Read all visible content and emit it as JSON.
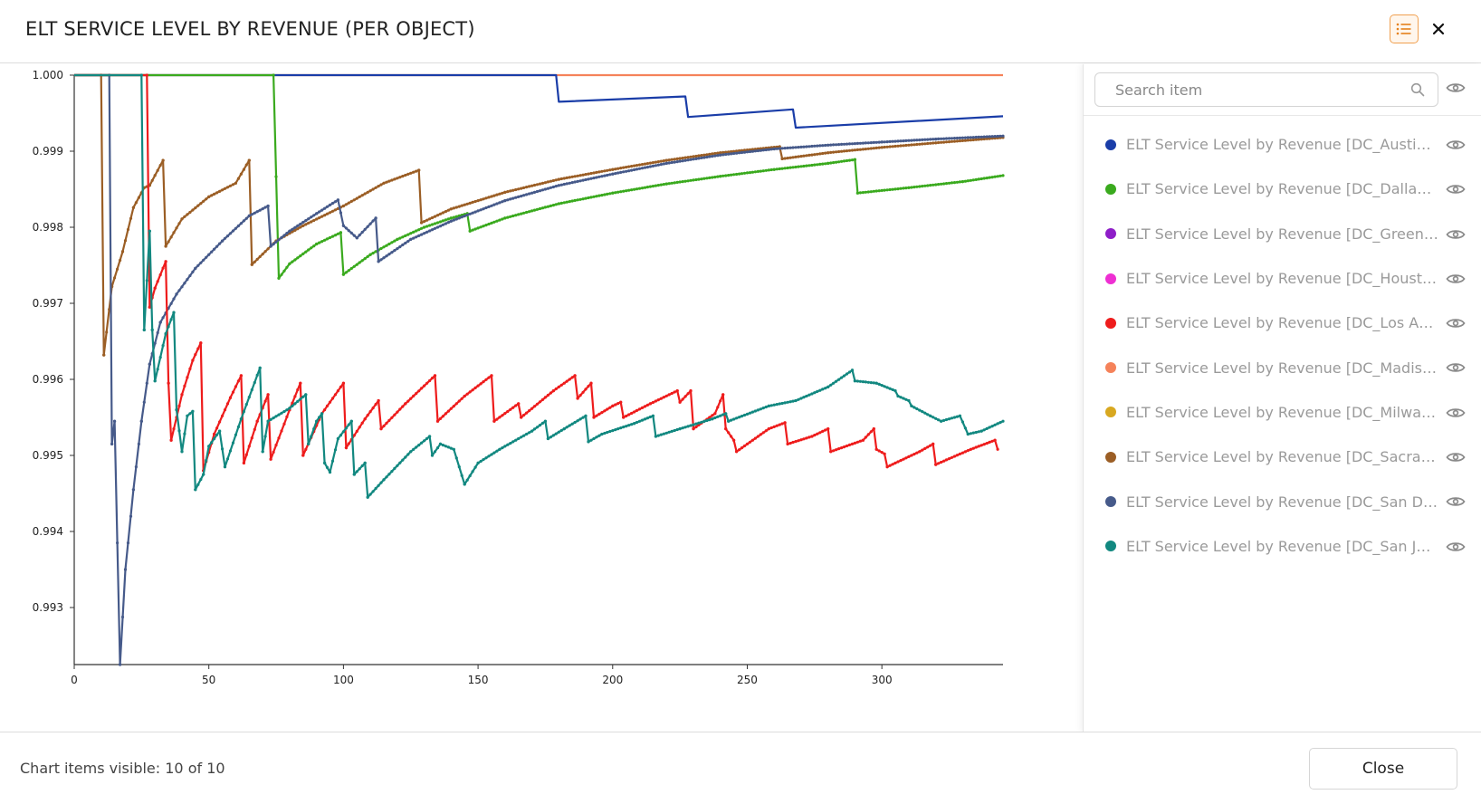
{
  "header": {
    "title": "ELT SERVICE LEVEL BY REVENUE (PER OBJECT)",
    "legend_toggle_icon": "list-icon",
    "close_icon": "close-icon"
  },
  "sidebar": {
    "search_placeholder": "Search item",
    "items": [
      {
        "label": "ELT Service Level by Revenue [DC_Austin, ...",
        "color": "#1a3da8"
      },
      {
        "label": "ELT Service Level by Revenue [DC_Dallas, ...",
        "color": "#3aaa1e"
      },
      {
        "label": "ELT Service Level by Revenue [DC_Green B...",
        "color": "#8e1ec8"
      },
      {
        "label": "ELT Service Level by Revenue [DC_Housto...",
        "color": "#ee2fd2"
      },
      {
        "label": "ELT Service Level by Revenue [DC_Los Ang...",
        "color": "#ee1c1c"
      },
      {
        "label": "ELT Service Level by Revenue [DC_Madiso...",
        "color": "#f5825a"
      },
      {
        "label": "ELT Service Level by Revenue [DC_Milwau...",
        "color": "#d8a820"
      },
      {
        "label": "ELT Service Level by Revenue [DC_Sacram...",
        "color": "#9b5e25"
      },
      {
        "label": "ELT Service Level by Revenue [DC_San Die...",
        "color": "#465a8a"
      },
      {
        "label": "ELT Service Level by Revenue [DC_San Jos...",
        "color": "#128880"
      }
    ]
  },
  "footer": {
    "status": "Chart items visible: 10 of 10",
    "close_label": "Close"
  },
  "chart_data": {
    "type": "line",
    "xlim": [
      0,
      345
    ],
    "ylim": [
      0.99225,
      1.0
    ],
    "x_ticks": [
      0,
      50,
      100,
      150,
      200,
      250,
      300
    ],
    "y_ticks": [
      0.993,
      0.994,
      0.995,
      0.996,
      0.997,
      0.998,
      0.999,
      1.0
    ],
    "x_tick_labels": [
      "0",
      "50",
      "100",
      "150",
      "200",
      "250",
      "300"
    ],
    "y_tick_labels": [
      "0.993",
      "0.994",
      "0.995",
      "0.996",
      "0.997",
      "0.998",
      "0.999",
      "1.000"
    ],
    "series": [
      {
        "name": "ELT Service Level by Revenue [DC_Madiso...",
        "color": "#f5825a",
        "markers": false,
        "points": [
          [
            0,
            1.0
          ],
          [
            345,
            1.0
          ]
        ]
      },
      {
        "name": "ELT Service Level by Revenue [DC_Austin, ...",
        "color": "#1a3da8",
        "markers": false,
        "points": [
          [
            0,
            1.0
          ],
          [
            179,
            1.0
          ],
          [
            180,
            0.99965
          ],
          [
            227,
            0.99972
          ],
          [
            228,
            0.99945
          ],
          [
            267,
            0.99955
          ],
          [
            268,
            0.99931
          ],
          [
            345,
            0.99946
          ]
        ]
      },
      {
        "name": "ELT Service Level by Revenue [DC_Dallas, ...",
        "color": "#3aaa1e",
        "markers": true,
        "points": [
          [
            0,
            1.0
          ],
          [
            74,
            1.0
          ],
          [
            76,
            0.99733
          ],
          [
            80,
            0.99752
          ],
          [
            90,
            0.99778
          ],
          [
            99,
            0.99793
          ],
          [
            100,
            0.99738
          ],
          [
            110,
            0.99764
          ],
          [
            120,
            0.99784
          ],
          [
            130,
            0.998
          ],
          [
            140,
            0.99812
          ],
          [
            146,
            0.99818
          ],
          [
            147,
            0.99795
          ],
          [
            160,
            0.99812
          ],
          [
            180,
            0.99831
          ],
          [
            200,
            0.99845
          ],
          [
            220,
            0.99857
          ],
          [
            240,
            0.99867
          ],
          [
            260,
            0.99876
          ],
          [
            280,
            0.99884
          ],
          [
            290,
            0.99889
          ],
          [
            291,
            0.99845
          ],
          [
            310,
            0.99852
          ],
          [
            330,
            0.9986
          ],
          [
            345,
            0.99868
          ]
        ]
      },
      {
        "name": "ELT Service Level by Revenue [DC_Sacram...",
        "color": "#9b5e25",
        "markers": true,
        "points": [
          [
            0,
            1.0
          ],
          [
            10,
            1.0
          ],
          [
            11,
            0.99632
          ],
          [
            14,
            0.99722
          ],
          [
            18,
            0.99768
          ],
          [
            22,
            0.99826
          ],
          [
            26,
            0.99852
          ],
          [
            28,
            0.99855
          ],
          [
            33,
            0.99888
          ],
          [
            34,
            0.99775
          ],
          [
            40,
            0.99811
          ],
          [
            50,
            0.9984
          ],
          [
            60,
            0.99858
          ],
          [
            65,
            0.99888
          ],
          [
            66,
            0.99751
          ],
          [
            75,
            0.99782
          ],
          [
            85,
            0.99802
          ],
          [
            100,
            0.99828
          ],
          [
            115,
            0.99858
          ],
          [
            128,
            0.99875
          ],
          [
            129,
            0.99806
          ],
          [
            140,
            0.99824
          ],
          [
            160,
            0.99846
          ],
          [
            180,
            0.99863
          ],
          [
            200,
            0.99876
          ],
          [
            220,
            0.99888
          ],
          [
            240,
            0.99898
          ],
          [
            262,
            0.99906
          ],
          [
            263,
            0.9989
          ],
          [
            280,
            0.99898
          ],
          [
            300,
            0.99905
          ],
          [
            320,
            0.99911
          ],
          [
            345,
            0.99918
          ]
        ]
      },
      {
        "name": "ELT Service Level by Revenue [DC_San Die...",
        "color": "#465a8a",
        "markers": true,
        "points": [
          [
            0,
            1.0
          ],
          [
            13,
            1.0
          ],
          [
            14,
            0.99515
          ],
          [
            15,
            0.99545
          ],
          [
            17,
            0.99225
          ],
          [
            19,
            0.9935
          ],
          [
            22,
            0.99455
          ],
          [
            25,
            0.99545
          ],
          [
            28,
            0.9962
          ],
          [
            32,
            0.99675
          ],
          [
            38,
            0.99712
          ],
          [
            45,
            0.99746
          ],
          [
            55,
            0.99782
          ],
          [
            65,
            0.99815
          ],
          [
            72,
            0.99828
          ],
          [
            73,
            0.99775
          ],
          [
            80,
            0.99795
          ],
          [
            90,
            0.99818
          ],
          [
            98,
            0.99836
          ],
          [
            100,
            0.99802
          ],
          [
            105,
            0.99786
          ],
          [
            112,
            0.99812
          ],
          [
            113,
            0.99755
          ],
          [
            125,
            0.99784
          ],
          [
            140,
            0.99808
          ],
          [
            160,
            0.99835
          ],
          [
            180,
            0.99855
          ],
          [
            200,
            0.9987
          ],
          [
            220,
            0.99884
          ],
          [
            240,
            0.99895
          ],
          [
            260,
            0.99903
          ],
          [
            280,
            0.99908
          ],
          [
            300,
            0.99912
          ],
          [
            320,
            0.99916
          ],
          [
            345,
            0.9992
          ]
        ]
      },
      {
        "name": "ELT Service Level by Revenue [DC_Los Ang...",
        "color": "#ee1c1c",
        "markers": true,
        "points": [
          [
            0,
            1.0
          ],
          [
            27,
            1.0
          ],
          [
            28,
            0.99695
          ],
          [
            30,
            0.9972
          ],
          [
            34,
            0.99755
          ],
          [
            35,
            0.99595
          ],
          [
            36,
            0.9952
          ],
          [
            40,
            0.9958
          ],
          [
            44,
            0.99625
          ],
          [
            47,
            0.99648
          ],
          [
            48,
            0.9948
          ],
          [
            52,
            0.99528
          ],
          [
            58,
            0.99576
          ],
          [
            62,
            0.99605
          ],
          [
            63,
            0.9949
          ],
          [
            68,
            0.99545
          ],
          [
            72,
            0.9958
          ],
          [
            73,
            0.99495
          ],
          [
            80,
            0.9956
          ],
          [
            84,
            0.99595
          ],
          [
            85,
            0.995
          ],
          [
            92,
            0.99555
          ],
          [
            100,
            0.99595
          ],
          [
            101,
            0.9951
          ],
          [
            108,
            0.99548
          ],
          [
            113,
            0.99572
          ],
          [
            114,
            0.99535
          ],
          [
            123,
            0.99568
          ],
          [
            134,
            0.99605
          ],
          [
            135,
            0.99545
          ],
          [
            145,
            0.99578
          ],
          [
            155,
            0.99605
          ],
          [
            156,
            0.99545
          ],
          [
            165,
            0.99568
          ],
          [
            166,
            0.9955
          ],
          [
            178,
            0.99585
          ],
          [
            186,
            0.99605
          ],
          [
            187,
            0.99575
          ],
          [
            192,
            0.99595
          ],
          [
            193,
            0.9955
          ],
          [
            200,
            0.99565
          ],
          [
            203,
            0.9957
          ],
          [
            204,
            0.9955
          ],
          [
            214,
            0.99568
          ],
          [
            224,
            0.99585
          ],
          [
            225,
            0.9957
          ],
          [
            229,
            0.99585
          ],
          [
            230,
            0.99535
          ],
          [
            238,
            0.99555
          ],
          [
            241,
            0.9958
          ],
          [
            242,
            0.99535
          ],
          [
            245,
            0.9952
          ],
          [
            246,
            0.99505
          ],
          [
            258,
            0.99535
          ],
          [
            264,
            0.99543
          ],
          [
            265,
            0.99515
          ],
          [
            274,
            0.99525
          ],
          [
            280,
            0.99535
          ],
          [
            281,
            0.99505
          ],
          [
            293,
            0.9952
          ],
          [
            297,
            0.99535
          ],
          [
            298,
            0.99508
          ],
          [
            301,
            0.99502
          ],
          [
            302,
            0.99485
          ],
          [
            314,
            0.99505
          ],
          [
            319,
            0.99515
          ],
          [
            320,
            0.99488
          ],
          [
            333,
            0.99508
          ],
          [
            342,
            0.9952
          ],
          [
            343,
            0.99508
          ]
        ]
      },
      {
        "name": "ELT Service Level by Revenue [DC_San Jos...",
        "color": "#128880",
        "markers": true,
        "points": [
          [
            0,
            1.0
          ],
          [
            25,
            1.0
          ],
          [
            26,
            0.99665
          ],
          [
            28,
            0.99795
          ],
          [
            29,
            0.99665
          ],
          [
            30,
            0.99598
          ],
          [
            34,
            0.9966
          ],
          [
            37,
            0.99688
          ],
          [
            38,
            0.9956
          ],
          [
            40,
            0.99505
          ],
          [
            42,
            0.99552
          ],
          [
            44,
            0.99558
          ],
          [
            45,
            0.99455
          ],
          [
            48,
            0.99475
          ],
          [
            50,
            0.99512
          ],
          [
            54,
            0.99532
          ],
          [
            56,
            0.99485
          ],
          [
            62,
            0.99548
          ],
          [
            69,
            0.99615
          ],
          [
            70,
            0.99505
          ],
          [
            72,
            0.99545
          ],
          [
            80,
            0.99562
          ],
          [
            86,
            0.9958
          ],
          [
            87,
            0.99515
          ],
          [
            90,
            0.99545
          ],
          [
            92,
            0.99555
          ],
          [
            93,
            0.9949
          ],
          [
            95,
            0.99478
          ],
          [
            98,
            0.99522
          ],
          [
            103,
            0.99545
          ],
          [
            104,
            0.99475
          ],
          [
            108,
            0.9949
          ],
          [
            109,
            0.99445
          ],
          [
            115,
            0.99468
          ],
          [
            125,
            0.99505
          ],
          [
            132,
            0.99525
          ],
          [
            133,
            0.995
          ],
          [
            136,
            0.99515
          ],
          [
            141,
            0.99508
          ],
          [
            145,
            0.99462
          ],
          [
            150,
            0.9949
          ],
          [
            158,
            0.99508
          ],
          [
            170,
            0.99532
          ],
          [
            175,
            0.99545
          ],
          [
            176,
            0.99522
          ],
          [
            182,
            0.99535
          ],
          [
            190,
            0.99552
          ],
          [
            191,
            0.99518
          ],
          [
            196,
            0.99528
          ],
          [
            208,
            0.99542
          ],
          [
            215,
            0.99552
          ],
          [
            216,
            0.99525
          ],
          [
            225,
            0.99535
          ],
          [
            237,
            0.99548
          ],
          [
            242,
            0.99555
          ],
          [
            243,
            0.99545
          ],
          [
            258,
            0.99565
          ],
          [
            268,
            0.99572
          ],
          [
            280,
            0.9959
          ],
          [
            289,
            0.99612
          ],
          [
            290,
            0.99598
          ],
          [
            298,
            0.99595
          ],
          [
            305,
            0.99585
          ],
          [
            306,
            0.99578
          ],
          [
            310,
            0.99572
          ],
          [
            311,
            0.99565
          ],
          [
            318,
            0.99552
          ],
          [
            322,
            0.99545
          ],
          [
            329,
            0.99552
          ],
          [
            332,
            0.99528
          ],
          [
            337,
            0.99532
          ],
          [
            345,
            0.99545
          ]
        ]
      }
    ]
  }
}
